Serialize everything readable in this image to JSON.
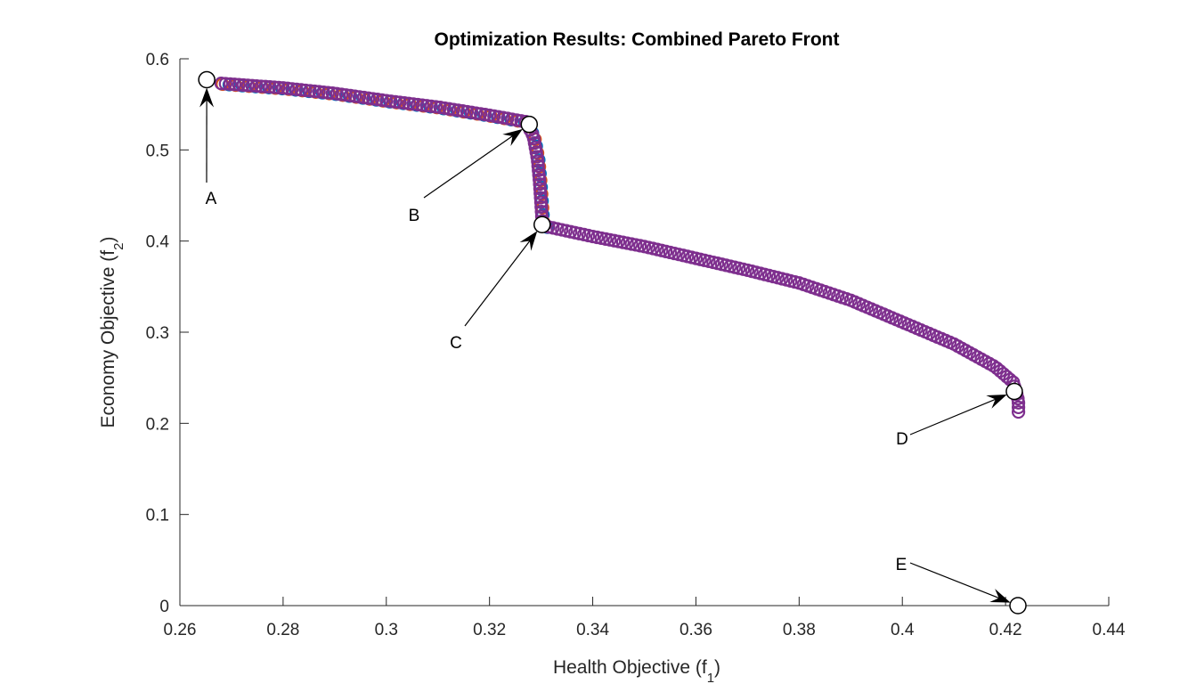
{
  "chart_data": {
    "type": "scatter",
    "title": "Optimization Results: Combined Pareto Front",
    "xlabel": "Health Objective (f",
    "xlabel_sub": "1",
    "xlabel_end": ")",
    "ylabel": "Economy Objective (f",
    "ylabel_sub": "2",
    "ylabel_end": ")",
    "xlim": [
      0.26,
      0.44
    ],
    "ylim": [
      0,
      0.6
    ],
    "xticks": [
      "0.26",
      "0.28",
      "0.3",
      "0.32",
      "0.34",
      "0.36",
      "0.38",
      "0.4",
      "0.42",
      "0.44"
    ],
    "yticks": [
      "0",
      "0.1",
      "0.2",
      "0.3",
      "0.4",
      "0.5",
      "0.6"
    ],
    "grid": false,
    "series": [
      {
        "name": "Pareto front",
        "color": "#7E2F8E",
        "secondary_colors": [
          "#D95319",
          "#0072BD"
        ],
        "points": [
          [
            0.268,
            0.573
          ],
          [
            0.28,
            0.568
          ],
          [
            0.29,
            0.562
          ],
          [
            0.3,
            0.554
          ],
          [
            0.31,
            0.547
          ],
          [
            0.32,
            0.538
          ],
          [
            0.327,
            0.531
          ],
          [
            0.3285,
            0.515
          ],
          [
            0.3293,
            0.49
          ],
          [
            0.3297,
            0.465
          ],
          [
            0.33,
            0.44
          ],
          [
            0.3302,
            0.422
          ],
          [
            0.331,
            0.416
          ],
          [
            0.34,
            0.405
          ],
          [
            0.35,
            0.394
          ],
          [
            0.36,
            0.381
          ],
          [
            0.37,
            0.368
          ],
          [
            0.38,
            0.354
          ],
          [
            0.39,
            0.335
          ],
          [
            0.4,
            0.311
          ],
          [
            0.41,
            0.287
          ],
          [
            0.418,
            0.262
          ],
          [
            0.4215,
            0.245
          ],
          [
            0.4225,
            0.225
          ],
          [
            0.4225,
            0.21
          ]
        ]
      }
    ],
    "annotations": [
      {
        "label": "A",
        "x": 0.2652,
        "y": 0.577
      },
      {
        "label": "B",
        "x": 0.3277,
        "y": 0.528
      },
      {
        "label": "C",
        "x": 0.3302,
        "y": 0.418
      },
      {
        "label": "D",
        "x": 0.4217,
        "y": 0.235
      },
      {
        "label": "E",
        "x": 0.4224,
        "y": 0.0
      }
    ]
  }
}
